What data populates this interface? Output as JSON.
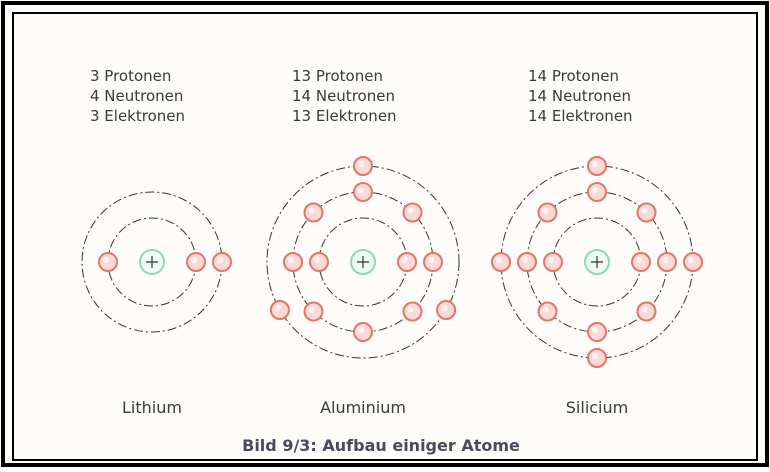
{
  "atoms": [
    {
      "lines": [
        "3 Protonen",
        "4 Neutronen",
        "3 Elektronen"
      ],
      "name": "Lithium"
    },
    {
      "lines": [
        "13 Protonen",
        "14 Neutronen",
        "13 Elektronen"
      ],
      "name": "Aluminium"
    },
    {
      "lines": [
        "14 Protonen",
        "14 Neutronen",
        "14 Elektronen"
      ],
      "name": "Silicium"
    }
  ],
  "caption": "Bild 9/3: Aufbau einiger Atome"
}
